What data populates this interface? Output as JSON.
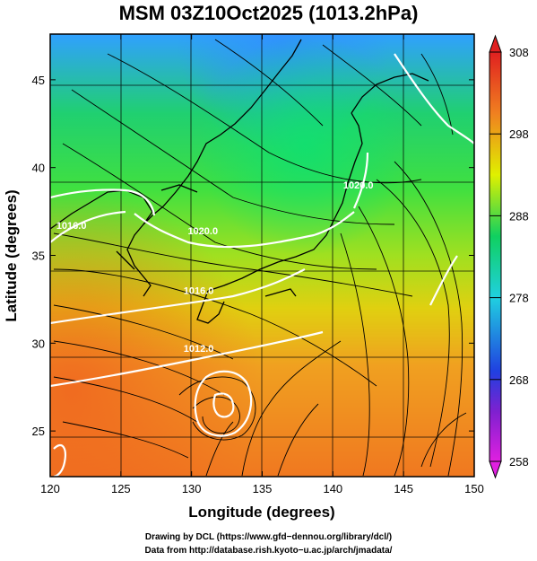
{
  "title": "MSM 03Z10Oct2025 (1013.2hPa)",
  "chart_data": {
    "type": "heatmap",
    "title": "MSM 03Z10Oct2025 (1013.2hPa)",
    "xlabel": "Longitude (degrees)",
    "ylabel": "Latitude  (degrees)",
    "xlim": [
      120,
      150
    ],
    "ylim": [
      22.4,
      47.6
    ],
    "x_ticks": [
      120,
      125,
      130,
      135,
      140,
      145,
      150
    ],
    "y_ticks": [
      25,
      30,
      35,
      40,
      45
    ],
    "grid": true,
    "colorbar": {
      "min": 258,
      "max": 308,
      "ticks": [
        258,
        268,
        278,
        288,
        298,
        308
      ],
      "colors": [
        "#e020e0",
        "#3030d0",
        "#20c8f0",
        "#10e060",
        "#f0f000",
        "#f08020",
        "#e02020"
      ]
    },
    "contours": [
      {
        "label": "1016.0",
        "lon": 121.5,
        "lat": 36.5
      },
      {
        "label": "1020.0",
        "lon": 130.8,
        "lat": 36.2
      },
      {
        "label": "1020.0",
        "lon": 141.8,
        "lat": 38.8
      },
      {
        "label": "1016.0",
        "lon": 130.5,
        "lat": 32.8
      },
      {
        "label": "1012.0",
        "lon": 130.5,
        "lat": 29.5
      }
    ]
  },
  "credits": {
    "line1": "Drawing by DCL (https://www.gfd−dennou.org/library/dcl/)",
    "line2": "Data from http://database.rish.kyoto−u.ac.jp/arch/jmadata/"
  }
}
